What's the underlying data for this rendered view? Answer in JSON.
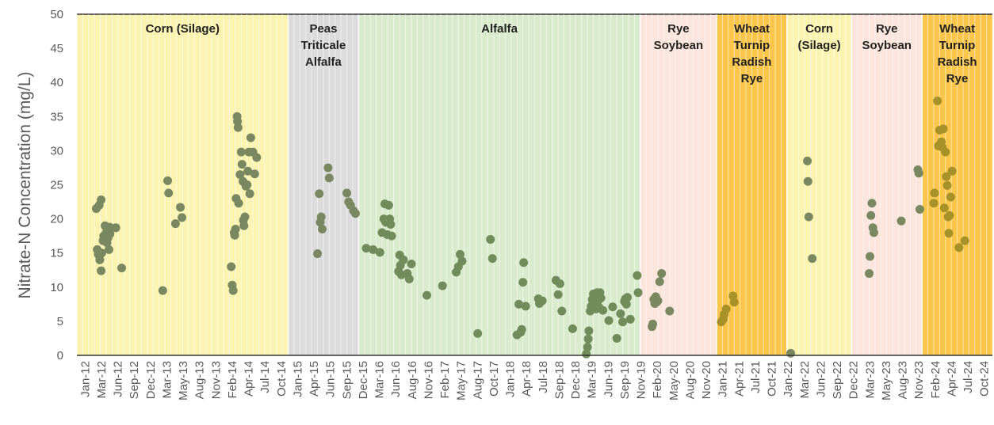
{
  "chart_data": {
    "type": "scatter",
    "title": "",
    "xlabel": "",
    "ylabel": "Nitrate-N Concentration (mg/L)",
    "ylim": [
      0,
      50
    ],
    "yticks": [
      0,
      5,
      10,
      15,
      20,
      25,
      30,
      35,
      40,
      45,
      50
    ],
    "xlim": [
      "2012-01",
      "2025-01"
    ],
    "xtick_labels": [
      "Jan-12",
      "Mar-12",
      "Jun-12",
      "Sep-12",
      "Dec-12",
      "Mar-13",
      "May-13",
      "Aug-13",
      "Nov-13",
      "Feb-14",
      "Apr-14",
      "Jul-14",
      "Oct-14",
      "Jan-15",
      "Apr-15",
      "Jun-15",
      "Sep-15",
      "Dec-15",
      "Mar-16",
      "Jun-16",
      "Aug-16",
      "Nov-16",
      "Feb-17",
      "May-17",
      "Aug-17",
      "Oct-17",
      "Jan-18",
      "Apr-18",
      "Jul-18",
      "Sep-18",
      "Dec-18",
      "Mar-19",
      "Jun-19",
      "Sep-19",
      "Nov-19",
      "Feb-20",
      "May-20",
      "Aug-20",
      "Nov-20",
      "Jan-21",
      "Apr-21",
      "Jul-21",
      "Oct-21",
      "Jan-22",
      "Mar-22",
      "Jun-22",
      "Sep-22",
      "Dec-22",
      "Mar-23",
      "May-23",
      "Aug-23",
      "Nov-23",
      "Feb-24",
      "Apr-24",
      "Jul-24",
      "Oct-24"
    ],
    "grid": "vertical",
    "crop_periods": [
      {
        "label": [
          "Corn (Silage)"
        ],
        "start": "2012-01",
        "end": "2015-01",
        "color": "#faf4b0"
      },
      {
        "label": [
          "Peas",
          "Triticale",
          "Alfalfa"
        ],
        "start": "2015-01",
        "end": "2016-01",
        "color": "#dbdbdb"
      },
      {
        "label": [
          "Alfalfa"
        ],
        "start": "2016-01",
        "end": "2020-01",
        "color": "#d9ebcd"
      },
      {
        "label": [
          "Rye",
          "Soybean"
        ],
        "start": "2020-01",
        "end": "2021-02",
        "color": "#fbe5dc"
      },
      {
        "label": [
          "Wheat",
          "Turnip",
          "Radish",
          "Rye"
        ],
        "start": "2021-02",
        "end": "2022-02",
        "color": "#fbc64a"
      },
      {
        "label": [
          "Corn",
          "(Silage)"
        ],
        "start": "2022-02",
        "end": "2023-01",
        "color": "#faf4b0"
      },
      {
        "label": [
          "Rye",
          "Soybean"
        ],
        "start": "2023-01",
        "end": "2024-01",
        "color": "#fbe5dc"
      },
      {
        "label": [
          "Wheat",
          "Turnip",
          "Radish",
          "Rye"
        ],
        "start": "2024-01",
        "end": "2025-01",
        "color": "#fbc64a"
      }
    ],
    "colors": {
      "marker": "#7a8862",
      "marker_on_gold": "#a7922a",
      "marker_on_green": "#718c5a"
    },
    "series": [
      {
        "values": [
          {
            "x": "2012-04-10",
            "y": 21.5
          },
          {
            "x": "2012-04-25",
            "y": 22.0
          },
          {
            "x": "2012-05-05",
            "y": 22.8
          },
          {
            "x": "2012-04-15",
            "y": 15.5
          },
          {
            "x": "2012-04-20",
            "y": 14.8
          },
          {
            "x": "2012-04-28",
            "y": 14.0
          },
          {
            "x": "2012-05-05",
            "y": 12.4
          },
          {
            "x": "2012-05-08",
            "y": 15.0
          },
          {
            "x": "2012-05-15",
            "y": 16.8
          },
          {
            "x": "2012-05-18",
            "y": 17.5
          },
          {
            "x": "2012-05-25",
            "y": 19.0
          },
          {
            "x": "2012-06-01",
            "y": 18.0
          },
          {
            "x": "2012-06-05",
            "y": 16.5
          },
          {
            "x": "2012-06-10",
            "y": 17.2
          },
          {
            "x": "2012-06-15",
            "y": 15.5
          },
          {
            "x": "2012-06-18",
            "y": 18.8
          },
          {
            "x": "2012-06-20",
            "y": 17.8
          },
          {
            "x": "2012-07-20",
            "y": 18.7
          },
          {
            "x": "2012-08-20",
            "y": 12.8
          },
          {
            "x": "2013-03-20",
            "y": 9.5
          },
          {
            "x": "2013-04-15",
            "y": 25.6
          },
          {
            "x": "2013-04-20",
            "y": 23.8
          },
          {
            "x": "2013-05-25",
            "y": 19.3
          },
          {
            "x": "2013-06-20",
            "y": 21.7
          },
          {
            "x": "2013-06-28",
            "y": 20.2
          },
          {
            "x": "2014-03-10",
            "y": 13.0
          },
          {
            "x": "2014-03-15",
            "y": 10.3
          },
          {
            "x": "2014-03-20",
            "y": 9.5
          },
          {
            "x": "2014-03-25",
            "y": 18.0
          },
          {
            "x": "2014-03-28",
            "y": 17.6
          },
          {
            "x": "2014-04-02",
            "y": 18.5
          },
          {
            "x": "2014-04-05",
            "y": 23.0
          },
          {
            "x": "2014-04-10",
            "y": 35.0
          },
          {
            "x": "2014-04-12",
            "y": 34.3
          },
          {
            "x": "2014-04-15",
            "y": 33.4
          },
          {
            "x": "2014-04-18",
            "y": 22.3
          },
          {
            "x": "2014-04-25",
            "y": 26.5
          },
          {
            "x": "2014-05-01",
            "y": 29.8
          },
          {
            "x": "2014-05-05",
            "y": 28.0
          },
          {
            "x": "2014-05-10",
            "y": 25.5
          },
          {
            "x": "2014-05-12",
            "y": 19.8
          },
          {
            "x": "2014-05-15",
            "y": 19.0
          },
          {
            "x": "2014-05-20",
            "y": 20.3
          },
          {
            "x": "2014-05-25",
            "y": 24.8
          },
          {
            "x": "2014-06-01",
            "y": 25.0
          },
          {
            "x": "2014-06-05",
            "y": 27.0
          },
          {
            "x": "2014-06-10",
            "y": 29.8
          },
          {
            "x": "2014-06-15",
            "y": 23.7
          },
          {
            "x": "2014-06-20",
            "y": 31.9
          },
          {
            "x": "2014-07-01",
            "y": 29.8
          },
          {
            "x": "2014-07-10",
            "y": 26.6
          },
          {
            "x": "2014-07-20",
            "y": 29.0
          },
          {
            "x": "2015-06-01",
            "y": 14.9
          },
          {
            "x": "2015-06-10",
            "y": 23.7
          },
          {
            "x": "2015-06-15",
            "y": 19.5
          },
          {
            "x": "2015-06-20",
            "y": 20.3
          },
          {
            "x": "2015-06-25",
            "y": 18.5
          },
          {
            "x": "2015-07-25",
            "y": 27.5
          },
          {
            "x": "2015-08-01",
            "y": 26.0
          },
          {
            "x": "2015-11-01",
            "y": 23.8
          },
          {
            "x": "2015-11-10",
            "y": 22.5
          },
          {
            "x": "2015-11-20",
            "y": 22.0
          },
          {
            "x": "2015-12-05",
            "y": 21.2
          },
          {
            "x": "2015-12-15",
            "y": 20.8
          },
          {
            "x": "2016-02-10",
            "y": 15.7
          },
          {
            "x": "2016-03-15",
            "y": 15.5
          },
          {
            "x": "2016-04-20",
            "y": 15.1
          },
          {
            "x": "2016-05-01",
            "y": 18.0
          },
          {
            "x": "2016-05-10",
            "y": 20.0
          },
          {
            "x": "2016-05-15",
            "y": 22.2
          },
          {
            "x": "2016-05-20",
            "y": 19.5
          },
          {
            "x": "2016-05-28",
            "y": 17.7
          },
          {
            "x": "2016-06-05",
            "y": 22.0
          },
          {
            "x": "2016-06-10",
            "y": 20.0
          },
          {
            "x": "2016-06-15",
            "y": 19.2
          },
          {
            "x": "2016-06-20",
            "y": 17.5
          },
          {
            "x": "2016-07-25",
            "y": 12.3
          },
          {
            "x": "2016-08-01",
            "y": 14.7
          },
          {
            "x": "2016-08-05",
            "y": 13.2
          },
          {
            "x": "2016-08-10",
            "y": 11.8
          },
          {
            "x": "2016-08-20",
            "y": 14.0
          },
          {
            "x": "2016-09-10",
            "y": 12.0
          },
          {
            "x": "2016-09-20",
            "y": 11.2
          },
          {
            "x": "2016-10-01",
            "y": 13.4
          },
          {
            "x": "2016-12-20",
            "y": 8.8
          },
          {
            "x": "2017-03-10",
            "y": 10.2
          },
          {
            "x": "2017-05-20",
            "y": 12.2
          },
          {
            "x": "2017-06-01",
            "y": 13.0
          },
          {
            "x": "2017-06-10",
            "y": 14.8
          },
          {
            "x": "2017-06-20",
            "y": 13.8
          },
          {
            "x": "2017-09-10",
            "y": 3.2
          },
          {
            "x": "2017-11-15",
            "y": 17.0
          },
          {
            "x": "2017-11-25",
            "y": 14.2
          },
          {
            "x": "2018-04-01",
            "y": 3.0
          },
          {
            "x": "2018-04-10",
            "y": 7.5
          },
          {
            "x": "2018-04-20",
            "y": 3.4
          },
          {
            "x": "2018-04-25",
            "y": 3.8
          },
          {
            "x": "2018-05-01",
            "y": 10.7
          },
          {
            "x": "2018-05-05",
            "y": 13.6
          },
          {
            "x": "2018-05-15",
            "y": 7.2
          },
          {
            "x": "2018-07-20",
            "y": 8.3
          },
          {
            "x": "2018-07-25",
            "y": 7.6
          },
          {
            "x": "2018-08-01",
            "y": 7.8
          },
          {
            "x": "2018-08-10",
            "y": 8.0
          },
          {
            "x": "2018-10-20",
            "y": 11.0
          },
          {
            "x": "2018-11-01",
            "y": 8.9
          },
          {
            "x": "2018-11-10",
            "y": 10.5
          },
          {
            "x": "2018-11-20",
            "y": 6.5
          },
          {
            "x": "2019-01-15",
            "y": 3.9
          },
          {
            "x": "2019-03-25",
            "y": 0.2
          },
          {
            "x": "2019-04-01",
            "y": 1.2
          },
          {
            "x": "2019-04-05",
            "y": 2.4
          },
          {
            "x": "2019-04-08",
            "y": 3.6
          },
          {
            "x": "2019-04-15",
            "y": 6.5
          },
          {
            "x": "2019-04-20",
            "y": 7.2
          },
          {
            "x": "2019-04-25",
            "y": 8.2
          },
          {
            "x": "2019-05-01",
            "y": 9.0
          },
          {
            "x": "2019-05-05",
            "y": 8.8
          },
          {
            "x": "2019-05-10",
            "y": 7.5
          },
          {
            "x": "2019-05-15",
            "y": 6.8
          },
          {
            "x": "2019-05-20",
            "y": 9.2
          },
          {
            "x": "2019-05-25",
            "y": 8.0
          },
          {
            "x": "2019-06-01",
            "y": 7.0
          },
          {
            "x": "2019-06-05",
            "y": 9.2
          },
          {
            "x": "2019-06-10",
            "y": 8.4
          },
          {
            "x": "2019-06-20",
            "y": 6.6
          },
          {
            "x": "2019-07-20",
            "y": 5.1
          },
          {
            "x": "2019-08-10",
            "y": 7.1
          },
          {
            "x": "2019-09-01",
            "y": 2.5
          },
          {
            "x": "2019-09-20",
            "y": 6.1
          },
          {
            "x": "2019-10-01",
            "y": 4.9
          },
          {
            "x": "2019-10-10",
            "y": 7.9
          },
          {
            "x": "2019-10-15",
            "y": 8.3
          },
          {
            "x": "2019-10-20",
            "y": 7.5
          },
          {
            "x": "2019-10-25",
            "y": 8.5
          },
          {
            "x": "2019-11-10",
            "y": 5.3
          },
          {
            "x": "2019-12-15",
            "y": 11.7
          },
          {
            "x": "2019-12-20",
            "y": 9.2
          },
          {
            "x": "2020-03-01",
            "y": 4.2
          },
          {
            "x": "2020-03-05",
            "y": 4.6
          },
          {
            "x": "2020-03-10",
            "y": 8.2
          },
          {
            "x": "2020-03-15",
            "y": 7.6
          },
          {
            "x": "2020-03-20",
            "y": 8.6
          },
          {
            "x": "2020-03-25",
            "y": 7.8
          },
          {
            "x": "2020-04-01",
            "y": 8.0
          },
          {
            "x": "2020-04-10",
            "y": 10.8
          },
          {
            "x": "2020-04-20",
            "y": 12.0
          },
          {
            "x": "2020-06-01",
            "y": 6.5
          },
          {
            "x": "2021-02-25",
            "y": 4.9
          },
          {
            "x": "2021-03-05",
            "y": 5.3
          },
          {
            "x": "2021-03-10",
            "y": 6.0
          },
          {
            "x": "2021-03-20",
            "y": 6.8
          },
          {
            "x": "2021-04-25",
            "y": 8.7
          },
          {
            "x": "2021-05-01",
            "y": 7.8
          },
          {
            "x": "2022-02-20",
            "y": 0.3
          },
          {
            "x": "2022-05-15",
            "y": 28.5
          },
          {
            "x": "2022-05-18",
            "y": 25.5
          },
          {
            "x": "2022-05-22",
            "y": 20.3
          },
          {
            "x": "2022-06-10",
            "y": 14.2
          },
          {
            "x": "2023-04-01",
            "y": 12.0
          },
          {
            "x": "2023-04-05",
            "y": 14.5
          },
          {
            "x": "2023-04-10",
            "y": 20.5
          },
          {
            "x": "2023-04-15",
            "y": 22.3
          },
          {
            "x": "2023-04-20",
            "y": 18.7
          },
          {
            "x": "2023-04-25",
            "y": 18.0
          },
          {
            "x": "2023-09-15",
            "y": 19.7
          },
          {
            "x": "2023-12-10",
            "y": 27.2
          },
          {
            "x": "2023-12-15",
            "y": 26.7
          },
          {
            "x": "2023-12-20",
            "y": 21.4
          },
          {
            "x": "2024-03-01",
            "y": 22.3
          },
          {
            "x": "2024-03-05",
            "y": 23.8
          },
          {
            "x": "2024-03-20",
            "y": 37.3
          },
          {
            "x": "2024-03-25",
            "y": 30.7
          },
          {
            "x": "2024-04-01",
            "y": 33.0
          },
          {
            "x": "2024-04-10",
            "y": 31.3
          },
          {
            "x": "2024-04-15",
            "y": 30.5
          },
          {
            "x": "2024-04-20",
            "y": 33.2
          },
          {
            "x": "2024-04-25",
            "y": 21.6
          },
          {
            "x": "2024-05-01",
            "y": 29.8
          },
          {
            "x": "2024-05-05",
            "y": 26.2
          },
          {
            "x": "2024-05-10",
            "y": 24.9
          },
          {
            "x": "2024-05-15",
            "y": 20.3
          },
          {
            "x": "2024-05-18",
            "y": 17.9
          },
          {
            "x": "2024-05-22",
            "y": 20.5
          },
          {
            "x": "2024-05-28",
            "y": 23.2
          },
          {
            "x": "2024-06-05",
            "y": 27.0
          },
          {
            "x": "2024-07-10",
            "y": 15.8
          },
          {
            "x": "2024-08-10",
            "y": 16.8
          }
        ]
      }
    ]
  }
}
